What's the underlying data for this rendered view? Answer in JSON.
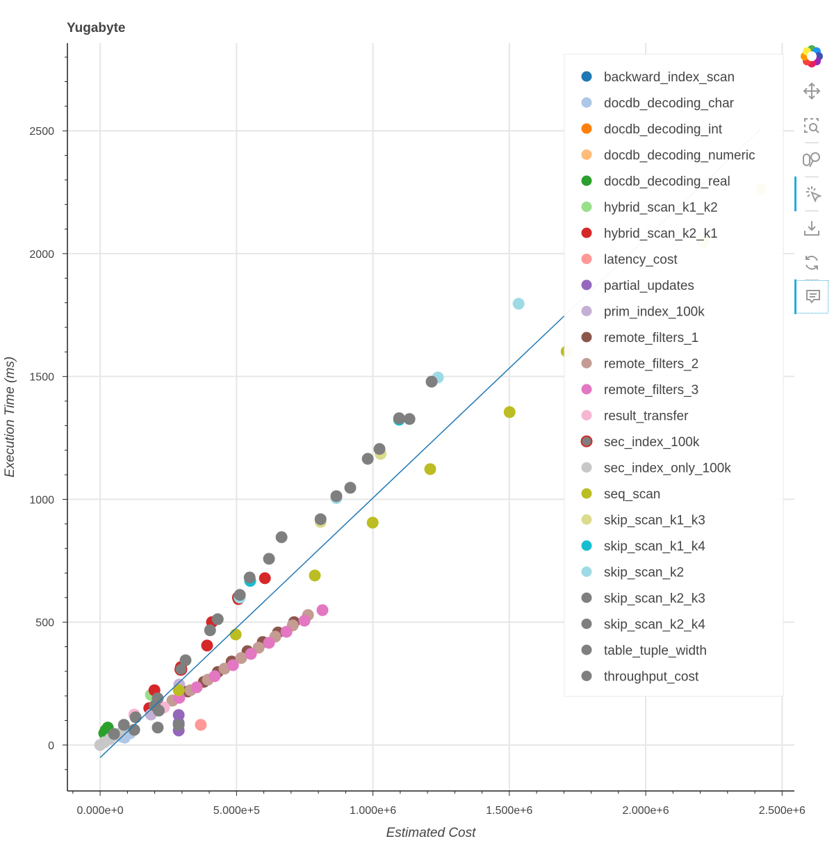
{
  "chart_data": {
    "type": "scatter",
    "title": "Yugabyte",
    "xlabel": "Estimated Cost",
    "ylabel": "Execution Time (ms)",
    "xlim": [
      -120000,
      2545000
    ],
    "ylim": [
      -187,
      2857
    ],
    "grid": true,
    "legend_position": "top-right",
    "x_ticks": [
      {
        "value": 0,
        "label": "0.000e+0"
      },
      {
        "value": 500000,
        "label": "5.000e+5"
      },
      {
        "value": 1000000,
        "label": "1.000e+6"
      },
      {
        "value": 1500000,
        "label": "1.500e+6"
      },
      {
        "value": 2000000,
        "label": "2.000e+6"
      },
      {
        "value": 2500000,
        "label": "2.500e+6"
      }
    ],
    "y_ticks": [
      {
        "value": 0,
        "label": "0"
      },
      {
        "value": 500,
        "label": "500"
      },
      {
        "value": 1000,
        "label": "1000"
      },
      {
        "value": 1500,
        "label": "1500"
      },
      {
        "value": 2000,
        "label": "2000"
      },
      {
        "value": 2500,
        "label": "2500"
      }
    ],
    "fit_line": {
      "color": "#1f77b4",
      "x": [
        0,
        2423000
      ],
      "y": [
        -51,
        2509
      ]
    },
    "series": [
      {
        "name": "backward_index_scan",
        "color": "#1f77b4",
        "points": []
      },
      {
        "name": "docdb_decoding_char",
        "color": "#aec7e8",
        "points": [
          [
            79000,
            34
          ],
          [
            110000,
            48
          ],
          [
            90000,
            30
          ]
        ]
      },
      {
        "name": "docdb_decoding_int",
        "color": "#ff7f0e",
        "points": []
      },
      {
        "name": "docdb_decoding_numeric",
        "color": "#ffbb78",
        "points": []
      },
      {
        "name": "docdb_decoding_real",
        "color": "#2ca02c",
        "points": [
          [
            15000,
            48
          ],
          [
            28000,
            71
          ],
          [
            20000,
            60
          ]
        ]
      },
      {
        "name": "hybrid_scan_k1_k2",
        "color": "#98df8a",
        "points": [
          [
            186000,
            204
          ]
        ]
      },
      {
        "name": "hybrid_scan_k2_k1",
        "color": "#d62728",
        "points": [
          [
            604000,
            679
          ],
          [
            410000,
            500
          ],
          [
            392000,
            405
          ],
          [
            507000,
            594
          ],
          [
            296000,
            317
          ],
          [
            199000,
            223
          ],
          [
            180000,
            150
          ]
        ]
      },
      {
        "name": "latency_cost",
        "color": "#ff9896",
        "points": [
          [
            369000,
            82
          ]
        ]
      },
      {
        "name": "partial_updates",
        "color": "#9467bd",
        "points": [
          [
            288000,
            122
          ],
          [
            288000,
            59
          ],
          [
            288000,
            90
          ]
        ]
      },
      {
        "name": "prim_index_100k",
        "color": "#c5b0d5",
        "points": [
          [
            186000,
            124
          ],
          [
            290000,
            246
          ]
        ]
      },
      {
        "name": "remote_filters_1",
        "color": "#8c564b",
        "points": [
          [
            711000,
            500
          ],
          [
            652000,
            458
          ],
          [
            596000,
            419
          ],
          [
            540000,
            382
          ],
          [
            482000,
            340
          ],
          [
            431000,
            297
          ],
          [
            380000,
            257
          ],
          [
            321000,
            218
          ],
          [
            265000,
            181
          ]
        ]
      },
      {
        "name": "remote_filters_2",
        "color": "#c49c94",
        "points": [
          [
            762000,
            529
          ],
          [
            706000,
            487
          ],
          [
            642000,
            441
          ],
          [
            581000,
            396
          ],
          [
            517000,
            354
          ],
          [
            456000,
            311
          ],
          [
            395000,
            266
          ],
          [
            331000,
            223
          ],
          [
            265000,
            181
          ]
        ]
      },
      {
        "name": "remote_filters_3",
        "color": "#e377c2",
        "points": [
          [
            815000,
            549
          ],
          [
            749000,
            506
          ],
          [
            683000,
            461
          ],
          [
            619000,
            416
          ],
          [
            553000,
            371
          ],
          [
            487000,
            325
          ],
          [
            420000,
            280
          ],
          [
            354000,
            235
          ],
          [
            290000,
            192
          ]
        ]
      },
      {
        "name": "result_transfer",
        "color": "#f7b6d2",
        "points": [
          [
            125000,
            124
          ],
          [
            234000,
            153
          ]
        ]
      },
      {
        "name": "sec_index_100k",
        "color": "#7f7f7f",
        "outline": "#d62728",
        "points": [
          [
            296000,
            308
          ],
          [
            507000,
            600
          ]
        ]
      },
      {
        "name": "sec_index_only_100k",
        "color": "#c7c7c7",
        "points": [
          [
            0,
            0
          ],
          [
            15000,
            11
          ],
          [
            36000,
            25
          ],
          [
            54000,
            40
          ],
          [
            74000,
            48
          ]
        ]
      },
      {
        "name": "seq_scan",
        "color": "#bcbd22",
        "points": [
          [
            2423000,
            2263
          ],
          [
            2211000,
            2048
          ],
          [
            1710000,
            1602
          ],
          [
            1501000,
            1355
          ],
          [
            1210000,
            1123
          ],
          [
            999000,
            905
          ],
          [
            787000,
            690
          ],
          [
            497000,
            450
          ],
          [
            288000,
            223
          ]
        ]
      },
      {
        "name": "skip_scan_k1_k3",
        "color": "#dbdb8d",
        "points": [
          [
            1028000,
            1185
          ],
          [
            808000,
            908
          ]
        ]
      },
      {
        "name": "skip_scan_k1_k4",
        "color": "#17becf",
        "points": [
          [
            1096000,
            1324
          ],
          [
            550000,
            668
          ]
        ]
      },
      {
        "name": "skip_scan_k2",
        "color": "#9edae5",
        "points": [
          [
            1534000,
            1796
          ],
          [
            1238000,
            1496
          ],
          [
            512000,
            600
          ],
          [
            866000,
            1005
          ]
        ]
      },
      {
        "name": "skip_scan_k2_k3",
        "color": "#7f7f7f",
        "points": [
          [
            1215000,
            1479
          ],
          [
            1024000,
            1205
          ],
          [
            917000,
            1047
          ],
          [
            808000,
            919
          ],
          [
            619000,
            758
          ],
          [
            512000,
            611
          ]
        ]
      },
      {
        "name": "skip_scan_k2_k4",
        "color": "#7f7f7f",
        "points": [
          [
            1134000,
            1327
          ],
          [
            1096000,
            1330
          ],
          [
            981000,
            1165
          ],
          [
            866000,
            1013
          ],
          [
            665000,
            846
          ],
          [
            548000,
            682
          ]
        ]
      },
      {
        "name": "table_tuple_width",
        "color": "#7f7f7f",
        "points": [
          [
            431000,
            512
          ],
          [
            403000,
            467
          ],
          [
            313000,
            345
          ],
          [
            211000,
            71
          ],
          [
            288000,
            82
          ],
          [
            211000,
            190
          ]
        ]
      },
      {
        "name": "throughput_cost",
        "color": "#7f7f7f",
        "points": [
          [
            130000,
            113
          ],
          [
            87000,
            82
          ],
          [
            51000,
            45
          ],
          [
            125000,
            62
          ],
          [
            200000,
            160
          ],
          [
            215000,
            140
          ]
        ]
      }
    ]
  },
  "toolbar": {
    "tools": [
      "bokeh-logo-icon",
      "pan-icon",
      "box-zoom-icon",
      "wheel-zoom-icon",
      "tap-icon",
      "save-icon",
      "reset-icon",
      "hover-icon"
    ]
  }
}
